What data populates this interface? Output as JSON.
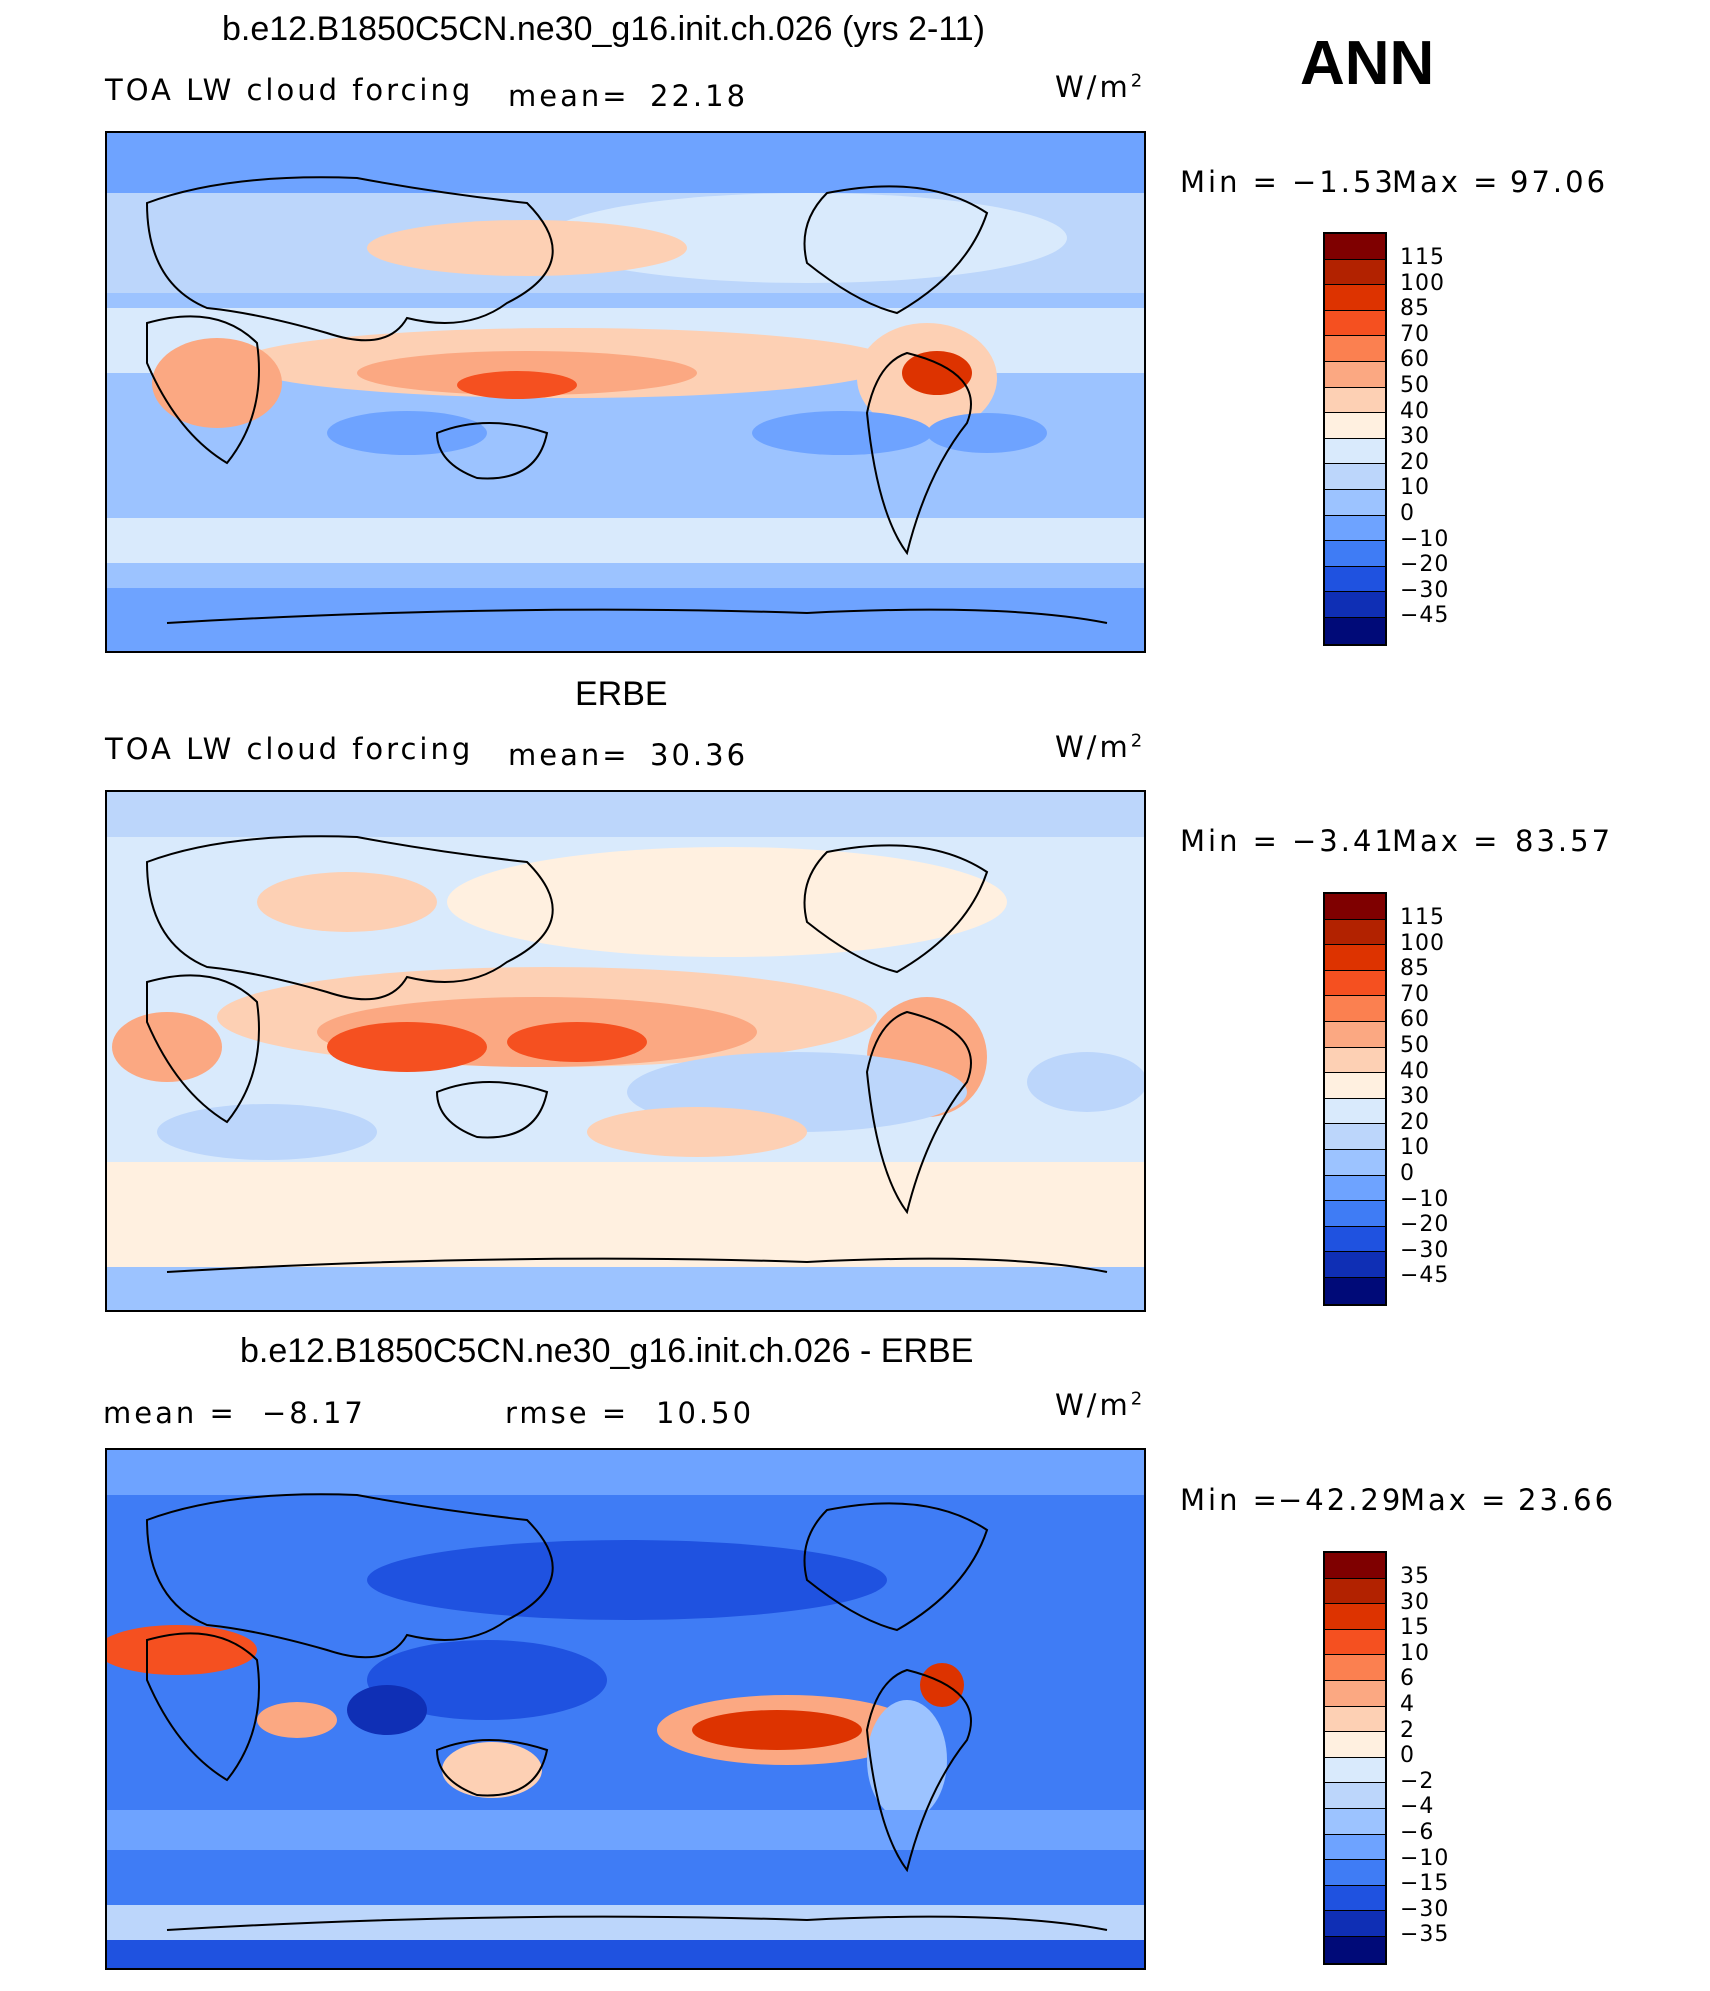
{
  "season": "ANN",
  "panels": [
    {
      "title": "b.e12.B1850C5CN.ne30_g16.init.ch.026 (yrs 2-11)",
      "variable": "TOA LW cloud forcing",
      "stat1_label": "mean=",
      "stat1_value": "22.18",
      "units": "W/m",
      "units_exp": "2",
      "min_label": "Min =",
      "min_value": "−1.53",
      "max_label": "Max =",
      "max_value": "97.06",
      "levels": [
        "115",
        "100",
        "85",
        "70",
        "60",
        "50",
        "40",
        "30",
        "20",
        "10",
        "0",
        "−10",
        "−20",
        "−30",
        "−45"
      ],
      "colors": [
        "#7f0000",
        "#b22200",
        "#dd3300",
        "#f55020",
        "#fb8050",
        "#fba882",
        "#fdd0b4",
        "#fff0e0",
        "#d9eafc",
        "#bcd6fb",
        "#9cc3ff",
        "#6ea3ff",
        "#3f7cf5",
        "#1f52e0",
        "#0f2fb5",
        "#000a78"
      ]
    },
    {
      "title": "ERBE",
      "variable": "TOA LW cloud forcing",
      "stat1_label": "mean=",
      "stat1_value": "30.36",
      "units": "W/m",
      "units_exp": "2",
      "min_label": "Min =",
      "min_value": "−3.41",
      "max_label": "Max =",
      "max_value": "83.57",
      "levels": [
        "115",
        "100",
        "85",
        "70",
        "60",
        "50",
        "40",
        "30",
        "20",
        "10",
        "0",
        "−10",
        "−20",
        "−30",
        "−45"
      ],
      "colors": [
        "#7f0000",
        "#b22200",
        "#dd3300",
        "#f55020",
        "#fb8050",
        "#fba882",
        "#fdd0b4",
        "#fff0e0",
        "#d9eafc",
        "#bcd6fb",
        "#9cc3ff",
        "#6ea3ff",
        "#3f7cf5",
        "#1f52e0",
        "#0f2fb5",
        "#000a78"
      ]
    },
    {
      "title": "b.e12.B1850C5CN.ne30_g16.init.ch.026 - ERBE",
      "stat1_label": "mean =",
      "stat1_value": "−8.17",
      "stat2_label": "rmse =",
      "stat2_value": "10.50",
      "units": "W/m",
      "units_exp": "2",
      "min_label": "Min =",
      "min_value": "−42.29",
      "max_label": "Max =",
      "max_value": "23.66",
      "levels": [
        "35",
        "30",
        "15",
        "10",
        "6",
        "4",
        "2",
        "0",
        "−2",
        "−4",
        "−6",
        "−10",
        "−15",
        "−30",
        "−35"
      ],
      "colors": [
        "#7f0000",
        "#b22200",
        "#dd3300",
        "#f55020",
        "#fb8050",
        "#fba882",
        "#fdd0b4",
        "#fff0e0",
        "#d9eafc",
        "#bcd6fb",
        "#9cc3ff",
        "#6ea3ff",
        "#3f7cf5",
        "#1f52e0",
        "#0f2fb5",
        "#000a78"
      ]
    }
  ]
}
